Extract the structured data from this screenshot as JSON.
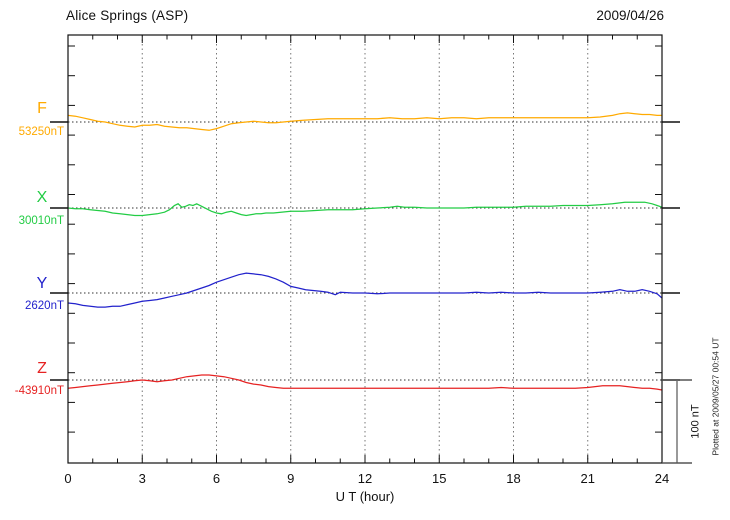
{
  "header": {
    "title": "Alice Springs (ASP)",
    "date": "2009/04/26"
  },
  "xlabel": "U T (hour)",
  "footer_note": "Plotted at 2009/05/27 00:54 UT",
  "scale_bar": {
    "label": "100 nT",
    "nT": 100
  },
  "chart_data": {
    "type": "line",
    "title": "Alice Springs (ASP)",
    "subtitle": "2009/04/26",
    "xlabel": "U T (hour)",
    "x_range": [
      0,
      24
    ],
    "x_ticks": [
      "0",
      "3",
      "6",
      "9",
      "12",
      "15",
      "18",
      "21",
      "24"
    ],
    "x_tick_hours": [
      0,
      3,
      6,
      9,
      12,
      15,
      18,
      21,
      24
    ],
    "grid_hours": [
      3,
      6,
      9,
      12,
      15,
      18,
      21
    ],
    "grid": "vertical-dotted",
    "legend_position": "left",
    "units": "nT offset from baseline",
    "series": [
      {
        "component": "F",
        "baseline_label": "53250nT",
        "baseline_nT": 53250,
        "color": "#FFAA00",
        "points": [
          [
            0,
            8
          ],
          [
            0.3,
            7
          ],
          [
            0.6,
            5
          ],
          [
            0.9,
            3
          ],
          [
            1.2,
            1
          ],
          [
            1.5,
            0
          ],
          [
            1.8,
            -2
          ],
          [
            2.1,
            -4
          ],
          [
            2.4,
            -5
          ],
          [
            2.7,
            -6
          ],
          [
            3,
            -4
          ],
          [
            3.3,
            -4
          ],
          [
            3.6,
            -3
          ],
          [
            3.9,
            -5
          ],
          [
            4.2,
            -6
          ],
          [
            4.5,
            -7
          ],
          [
            4.8,
            -7
          ],
          [
            5.1,
            -8
          ],
          [
            5.4,
            -9
          ],
          [
            5.7,
            -10
          ],
          [
            6,
            -8
          ],
          [
            6.3,
            -5
          ],
          [
            6.6,
            -2
          ],
          [
            6.9,
            -1
          ],
          [
            7.2,
            0
          ],
          [
            7.5,
            1
          ],
          [
            7.8,
            0
          ],
          [
            8.1,
            -1
          ],
          [
            8.4,
            -1
          ],
          [
            8.7,
            0
          ],
          [
            9,
            1
          ],
          [
            9.5,
            2
          ],
          [
            10,
            3
          ],
          [
            10.5,
            4
          ],
          [
            11,
            4
          ],
          [
            11.5,
            4
          ],
          [
            12,
            4
          ],
          [
            12.5,
            4
          ],
          [
            13,
            5
          ],
          [
            13.5,
            4
          ],
          [
            14,
            4
          ],
          [
            14.5,
            5
          ],
          [
            15,
            4
          ],
          [
            15.5,
            5
          ],
          [
            16,
            5
          ],
          [
            16.5,
            4
          ],
          [
            17,
            5
          ],
          [
            17.5,
            5
          ],
          [
            18,
            5
          ],
          [
            18.5,
            5
          ],
          [
            19,
            5
          ],
          [
            19.5,
            5
          ],
          [
            20,
            5
          ],
          [
            20.5,
            5
          ],
          [
            21,
            5
          ],
          [
            21.5,
            6
          ],
          [
            22,
            8
          ],
          [
            22.3,
            10
          ],
          [
            22.6,
            11
          ],
          [
            22.9,
            10
          ],
          [
            23.2,
            9
          ],
          [
            23.5,
            9
          ],
          [
            23.8,
            8
          ],
          [
            24,
            8
          ]
        ]
      },
      {
        "component": "X",
        "baseline_label": "30010nT",
        "baseline_nT": 30010,
        "color": "#22CC44",
        "points": [
          [
            0,
            0
          ],
          [
            0.3,
            -1
          ],
          [
            0.6,
            -1
          ],
          [
            0.9,
            -2
          ],
          [
            1.2,
            -3
          ],
          [
            1.5,
            -4
          ],
          [
            1.8,
            -6
          ],
          [
            2.1,
            -7
          ],
          [
            2.4,
            -8
          ],
          [
            2.7,
            -9
          ],
          [
            3,
            -9
          ],
          [
            3.3,
            -8
          ],
          [
            3.6,
            -7
          ],
          [
            3.9,
            -5
          ],
          [
            4.1,
            -2
          ],
          [
            4.3,
            3
          ],
          [
            4.45,
            5
          ],
          [
            4.6,
            1
          ],
          [
            4.75,
            2
          ],
          [
            4.9,
            4
          ],
          [
            5.05,
            3
          ],
          [
            5.2,
            5
          ],
          [
            5.4,
            2
          ],
          [
            5.6,
            -1
          ],
          [
            5.8,
            -4
          ],
          [
            6,
            -6
          ],
          [
            6.2,
            -7
          ],
          [
            6.4,
            -5
          ],
          [
            6.6,
            -4
          ],
          [
            6.8,
            -6
          ],
          [
            7,
            -8
          ],
          [
            7.2,
            -9
          ],
          [
            7.4,
            -8
          ],
          [
            7.6,
            -7
          ],
          [
            7.8,
            -7
          ],
          [
            8,
            -6
          ],
          [
            8.3,
            -6
          ],
          [
            8.6,
            -5
          ],
          [
            9,
            -4
          ],
          [
            9.5,
            -4
          ],
          [
            10,
            -3
          ],
          [
            10.5,
            -2
          ],
          [
            11,
            -2
          ],
          [
            11.5,
            -2
          ],
          [
            12,
            -1
          ],
          [
            12.5,
            0
          ],
          [
            13,
            1
          ],
          [
            13.3,
            2
          ],
          [
            13.6,
            1
          ],
          [
            14,
            1
          ],
          [
            14.5,
            0
          ],
          [
            15,
            0
          ],
          [
            15.5,
            0
          ],
          [
            16,
            0
          ],
          [
            16.5,
            1
          ],
          [
            17,
            1
          ],
          [
            17.5,
            1
          ],
          [
            18,
            1
          ],
          [
            18.5,
            2
          ],
          [
            19,
            2
          ],
          [
            19.5,
            2
          ],
          [
            20,
            3
          ],
          [
            20.5,
            3
          ],
          [
            21,
            3
          ],
          [
            21.5,
            4
          ],
          [
            22,
            5
          ],
          [
            22.5,
            7
          ],
          [
            23,
            7
          ],
          [
            23.3,
            7
          ],
          [
            23.6,
            5
          ],
          [
            23.8,
            3
          ],
          [
            24,
            1
          ]
        ]
      },
      {
        "component": "Y",
        "baseline_label": "2620nT",
        "baseline_nT": 2620,
        "color": "#2222CC",
        "points": [
          [
            0,
            -12
          ],
          [
            0.3,
            -13
          ],
          [
            0.6,
            -15
          ],
          [
            0.9,
            -16
          ],
          [
            1.2,
            -17
          ],
          [
            1.5,
            -17
          ],
          [
            1.8,
            -16
          ],
          [
            2.1,
            -16
          ],
          [
            2.4,
            -14
          ],
          [
            2.7,
            -12
          ],
          [
            3,
            -10
          ],
          [
            3.3,
            -9
          ],
          [
            3.6,
            -8
          ],
          [
            3.9,
            -6
          ],
          [
            4.2,
            -4
          ],
          [
            4.5,
            -2
          ],
          [
            4.8,
            0
          ],
          [
            5.1,
            3
          ],
          [
            5.4,
            6
          ],
          [
            5.7,
            9
          ],
          [
            6,
            13
          ],
          [
            6.3,
            16
          ],
          [
            6.6,
            19
          ],
          [
            6.9,
            22
          ],
          [
            7.2,
            24
          ],
          [
            7.5,
            23
          ],
          [
            7.8,
            22
          ],
          [
            8.1,
            20
          ],
          [
            8.4,
            17
          ],
          [
            8.7,
            13
          ],
          [
            9,
            8
          ],
          [
            9.3,
            6
          ],
          [
            9.6,
            4
          ],
          [
            9.9,
            3
          ],
          [
            10.2,
            2
          ],
          [
            10.5,
            1
          ],
          [
            10.8,
            -2
          ],
          [
            11,
            1
          ],
          [
            11.5,
            0
          ],
          [
            12,
            0
          ],
          [
            12.5,
            -1
          ],
          [
            13,
            0
          ],
          [
            13.5,
            0
          ],
          [
            14,
            0
          ],
          [
            14.5,
            0
          ],
          [
            15,
            0
          ],
          [
            15.5,
            0
          ],
          [
            16,
            0
          ],
          [
            16.5,
            1
          ],
          [
            17,
            0
          ],
          [
            17.5,
            1
          ],
          [
            18,
            0
          ],
          [
            18.5,
            0
          ],
          [
            19,
            1
          ],
          [
            19.5,
            0
          ],
          [
            20,
            0
          ],
          [
            20.5,
            0
          ],
          [
            21,
            0
          ],
          [
            21.5,
            1
          ],
          [
            22,
            2
          ],
          [
            22.3,
            4
          ],
          [
            22.6,
            2
          ],
          [
            22.9,
            2
          ],
          [
            23.2,
            4
          ],
          [
            23.5,
            2
          ],
          [
            23.8,
            -1
          ],
          [
            24,
            -6
          ]
        ]
      },
      {
        "component": "Z",
        "baseline_label": "-43910nT",
        "baseline_nT": -43910,
        "color": "#E62222",
        "points": [
          [
            0,
            -10
          ],
          [
            0.3,
            -9
          ],
          [
            0.6,
            -8
          ],
          [
            0.9,
            -7
          ],
          [
            1.2,
            -6
          ],
          [
            1.5,
            -5
          ],
          [
            1.8,
            -4
          ],
          [
            2.1,
            -3
          ],
          [
            2.4,
            -2
          ],
          [
            2.7,
            -1
          ],
          [
            3,
            0
          ],
          [
            3.3,
            -1
          ],
          [
            3.6,
            -2
          ],
          [
            3.9,
            -1
          ],
          [
            4.2,
            0
          ],
          [
            4.5,
            2
          ],
          [
            4.8,
            4
          ],
          [
            5.1,
            5
          ],
          [
            5.4,
            6
          ],
          [
            5.7,
            6
          ],
          [
            6,
            5
          ],
          [
            6.3,
            4
          ],
          [
            6.6,
            2
          ],
          [
            6.9,
            0
          ],
          [
            7.2,
            -3
          ],
          [
            7.5,
            -5
          ],
          [
            7.8,
            -6
          ],
          [
            8.1,
            -8
          ],
          [
            8.4,
            -9
          ],
          [
            8.7,
            -10
          ],
          [
            9,
            -10
          ],
          [
            9.5,
            -10
          ],
          [
            10,
            -10
          ],
          [
            10.5,
            -10
          ],
          [
            11,
            -10
          ],
          [
            11.5,
            -10
          ],
          [
            12,
            -10
          ],
          [
            12.5,
            -10
          ],
          [
            13,
            -10
          ],
          [
            13.5,
            -10
          ],
          [
            14,
            -10
          ],
          [
            14.5,
            -10
          ],
          [
            15,
            -10
          ],
          [
            15.5,
            -10
          ],
          [
            16,
            -10
          ],
          [
            16.5,
            -10
          ],
          [
            17,
            -10
          ],
          [
            17.5,
            -9
          ],
          [
            18,
            -10
          ],
          [
            18.5,
            -10
          ],
          [
            19,
            -10
          ],
          [
            19.5,
            -10
          ],
          [
            20,
            -10
          ],
          [
            20.5,
            -10
          ],
          [
            21,
            -9
          ],
          [
            21.3,
            -8
          ],
          [
            21.6,
            -7
          ],
          [
            22,
            -7
          ],
          [
            22.3,
            -7
          ],
          [
            22.6,
            -8
          ],
          [
            22.9,
            -9
          ],
          [
            23.2,
            -10
          ],
          [
            23.5,
            -10
          ],
          [
            23.8,
            -11
          ],
          [
            24,
            -12
          ]
        ]
      }
    ]
  }
}
